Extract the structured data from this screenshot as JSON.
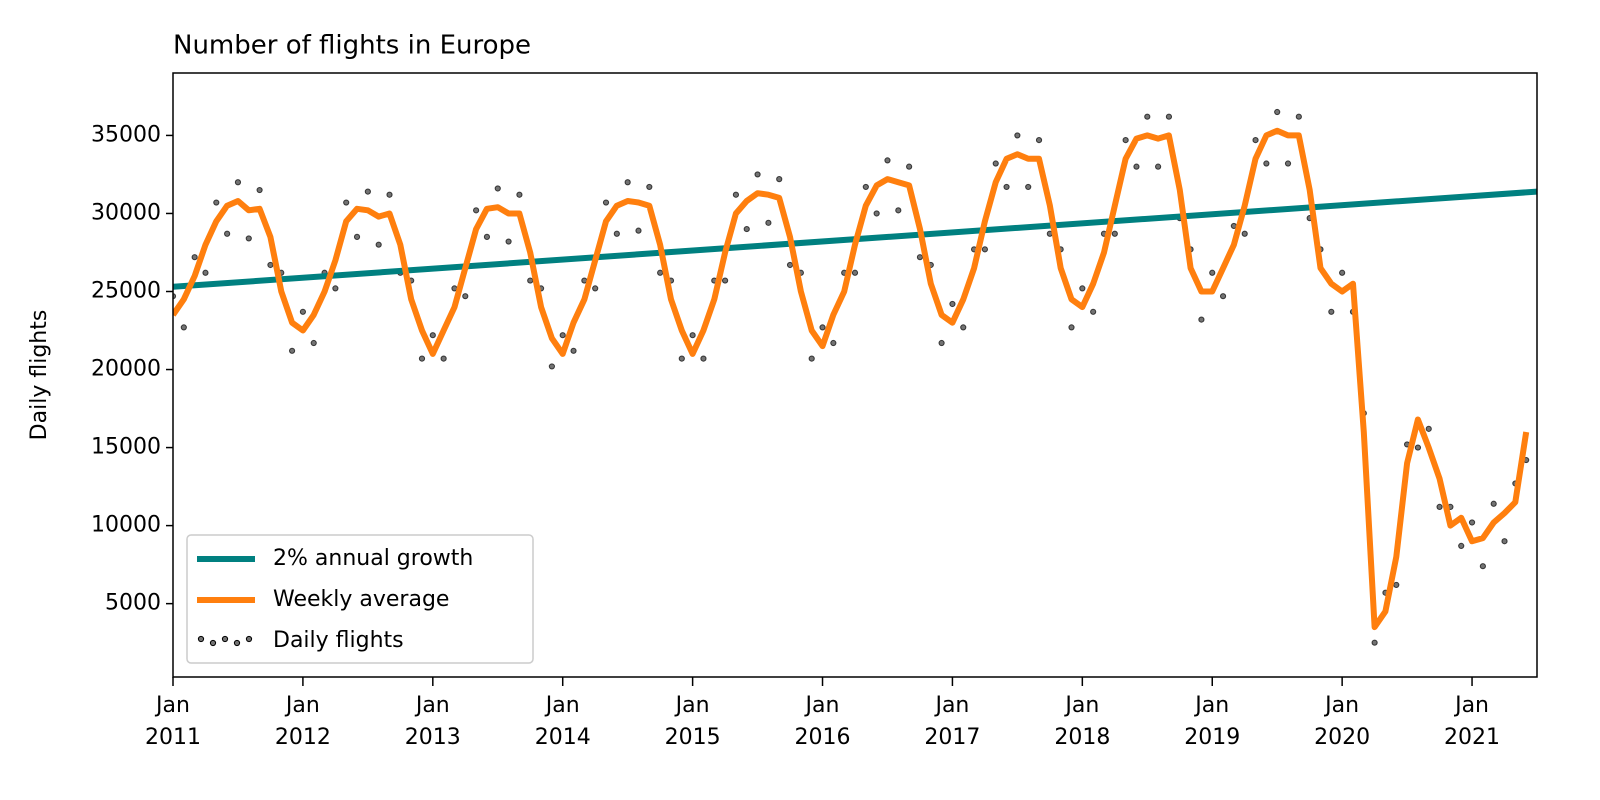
{
  "chart_data": {
    "type": "line",
    "title": "Number of flights in Europe",
    "y_label": "Daily flights",
    "xlim": [
      "2011-01",
      "2021-07"
    ],
    "ylim": [
      300,
      39000
    ],
    "yticks": [
      5000,
      10000,
      15000,
      20000,
      25000,
      30000,
      35000
    ],
    "xticks": [
      {
        "value": "2011-01",
        "label": "Jan\n2011"
      },
      {
        "value": "2012-01",
        "label": "Jan\n2012"
      },
      {
        "value": "2013-01",
        "label": "Jan\n2013"
      },
      {
        "value": "2014-01",
        "label": "Jan\n2014"
      },
      {
        "value": "2015-01",
        "label": "Jan\n2015"
      },
      {
        "value": "2016-01",
        "label": "Jan\n2016"
      },
      {
        "value": "2017-01",
        "label": "Jan\n2017"
      },
      {
        "value": "2018-01",
        "label": "Jan\n2018"
      },
      {
        "value": "2019-01",
        "label": "Jan\n2019"
      },
      {
        "value": "2020-01",
        "label": "Jan\n2020"
      },
      {
        "value": "2021-01",
        "label": "Jan\n2021"
      }
    ],
    "legend": "lower left",
    "x": [
      "2011-01",
      "2011-02",
      "2011-03",
      "2011-04",
      "2011-05",
      "2011-06",
      "2011-07",
      "2011-08",
      "2011-09",
      "2011-10",
      "2011-11",
      "2011-12",
      "2012-01",
      "2012-02",
      "2012-03",
      "2012-04",
      "2012-05",
      "2012-06",
      "2012-07",
      "2012-08",
      "2012-09",
      "2012-10",
      "2012-11",
      "2012-12",
      "2013-01",
      "2013-02",
      "2013-03",
      "2013-04",
      "2013-05",
      "2013-06",
      "2013-07",
      "2013-08",
      "2013-09",
      "2013-10",
      "2013-11",
      "2013-12",
      "2014-01",
      "2014-02",
      "2014-03",
      "2014-04",
      "2014-05",
      "2014-06",
      "2014-07",
      "2014-08",
      "2014-09",
      "2014-10",
      "2014-11",
      "2014-12",
      "2015-01",
      "2015-02",
      "2015-03",
      "2015-04",
      "2015-05",
      "2015-06",
      "2015-07",
      "2015-08",
      "2015-09",
      "2015-10",
      "2015-11",
      "2015-12",
      "2016-01",
      "2016-02",
      "2016-03",
      "2016-04",
      "2016-05",
      "2016-06",
      "2016-07",
      "2016-08",
      "2016-09",
      "2016-10",
      "2016-11",
      "2016-12",
      "2017-01",
      "2017-02",
      "2017-03",
      "2017-04",
      "2017-05",
      "2017-06",
      "2017-07",
      "2017-08",
      "2017-09",
      "2017-10",
      "2017-11",
      "2017-12",
      "2018-01",
      "2018-02",
      "2018-03",
      "2018-04",
      "2018-05",
      "2018-06",
      "2018-07",
      "2018-08",
      "2018-09",
      "2018-10",
      "2018-11",
      "2018-12",
      "2019-01",
      "2019-02",
      "2019-03",
      "2019-04",
      "2019-05",
      "2019-06",
      "2019-07",
      "2019-08",
      "2019-09",
      "2019-10",
      "2019-11",
      "2019-12",
      "2020-01",
      "2020-02",
      "2020-03",
      "2020-04",
      "2020-05",
      "2020-06",
      "2020-07",
      "2020-08",
      "2020-09",
      "2020-10",
      "2020-11",
      "2020-12",
      "2021-01",
      "2021-02",
      "2021-03",
      "2021-04",
      "2021-05",
      "2021-06"
    ],
    "series": [
      {
        "name": "2% annual growth",
        "type": "line",
        "color": "#008080",
        "x": [
          "2011-01",
          "2021-07"
        ],
        "values": [
          25300,
          31400
        ]
      },
      {
        "name": "Weekly average",
        "type": "line",
        "color": "#ff7f0e",
        "values": [
          23500,
          24500,
          26000,
          28000,
          29500,
          30500,
          30800,
          30200,
          30300,
          28500,
          25000,
          23000,
          22500,
          23500,
          25000,
          27000,
          29500,
          30300,
          30200,
          29800,
          30000,
          28000,
          24500,
          22500,
          21000,
          22500,
          24000,
          26500,
          29000,
          30300,
          30400,
          30000,
          30000,
          27500,
          24000,
          22000,
          21000,
          23000,
          24500,
          27000,
          29500,
          30500,
          30800,
          30700,
          30500,
          28000,
          24500,
          22500,
          21000,
          22500,
          24500,
          27500,
          30000,
          30800,
          31300,
          31200,
          31000,
          28500,
          25000,
          22500,
          21500,
          23500,
          25000,
          28000,
          30500,
          31800,
          32200,
          32000,
          31800,
          29000,
          25500,
          23500,
          23000,
          24500,
          26500,
          29500,
          32000,
          33500,
          33800,
          33500,
          33500,
          30500,
          26500,
          24500,
          24000,
          25500,
          27500,
          30500,
          33500,
          34800,
          35000,
          34800,
          35000,
          31500,
          26500,
          25000,
          25000,
          26500,
          28000,
          30500,
          33500,
          35000,
          35300,
          35000,
          35000,
          31500,
          26500,
          25500,
          25000,
          25500,
          16000,
          3500,
          4500,
          8000,
          14000,
          16800,
          15000,
          13000,
          10000,
          10500,
          9000,
          9200,
          10200,
          10800,
          11500,
          16000
        ]
      },
      {
        "name": "Daily flights",
        "type": "scatter",
        "color": "#000000",
        "values": [
          24700,
          22700,
          27200,
          26200,
          30700,
          28700,
          32000,
          28400,
          31500,
          26700,
          26200,
          21200,
          23700,
          21700,
          26200,
          25200,
          30700,
          28500,
          31400,
          28000,
          31200,
          26200,
          25700,
          20700,
          22200,
          20700,
          25200,
          24700,
          30200,
          28500,
          31600,
          28200,
          31200,
          25700,
          25200,
          20200,
          22200,
          21200,
          25700,
          25200,
          30700,
          28700,
          32000,
          28900,
          31700,
          26200,
          25700,
          20700,
          22200,
          20700,
          25700,
          25700,
          31200,
          29000,
          32500,
          29400,
          32200,
          26700,
          26200,
          20700,
          22700,
          21700,
          26200,
          26200,
          31700,
          30000,
          33400,
          30200,
          33000,
          27200,
          26700,
          21700,
          24200,
          22700,
          27700,
          27700,
          33200,
          31700,
          35000,
          31700,
          34700,
          28700,
          27700,
          22700,
          25200,
          23700,
          28700,
          28700,
          34700,
          33000,
          36200,
          33000,
          36200,
          29700,
          27700,
          23200,
          26200,
          24700,
          29200,
          28700,
          34700,
          33200,
          36500,
          33200,
          36200,
          29700,
          27700,
          23700,
          26200,
          23700,
          17200,
          2500,
          5700,
          6200,
          15200,
          15000,
          16200,
          11200,
          11200,
          8700,
          10200,
          7400,
          11400,
          9000,
          12700,
          14200
        ]
      }
    ]
  }
}
